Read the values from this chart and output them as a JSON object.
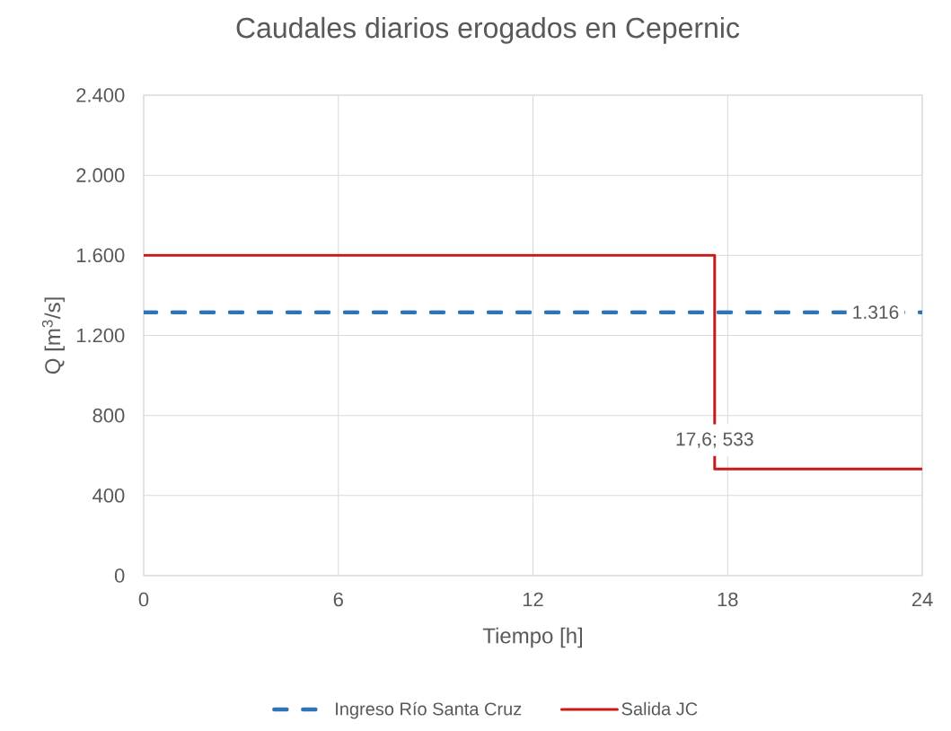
{
  "chart_data": {
    "type": "line",
    "title": "Caudales diarios erogados en Cepernic",
    "xlabel": "Tiempo [h]",
    "ylabel": "Q [m$^{3}$/s]",
    "xlim": [
      0,
      24
    ],
    "xticks": [
      0,
      6,
      12,
      18,
      24
    ],
    "ylim": [
      0,
      2400
    ],
    "yticks": [
      0,
      400,
      800,
      {
        "value": 1200,
        "label": "1.200"
      },
      {
        "value": 1600,
        "label": "1.600"
      },
      {
        "value": 2000,
        "label": "2.000"
      },
      {
        "value": 2400,
        "label": "2.400"
      }
    ],
    "grid": true,
    "legend": "bottom",
    "series": [
      {
        "name": "Ingreso Río Santa Cruz",
        "color": "#2e75b6",
        "line_style": "dashed",
        "x": [
          0,
          24
        ],
        "values": [
          1316,
          1316
        ],
        "value_labels": [
          null,
          "1.316"
        ]
      },
      {
        "name": "Salida JC",
        "color": "#c91a1a",
        "line_style": "solid",
        "x": [
          0,
          17.6,
          17.6,
          24
        ],
        "values": [
          1600,
          1600,
          533,
          533
        ]
      }
    ],
    "annotations": [
      {
        "text": "17,6; 533",
        "x": 17.6,
        "y": 533
      }
    ]
  }
}
